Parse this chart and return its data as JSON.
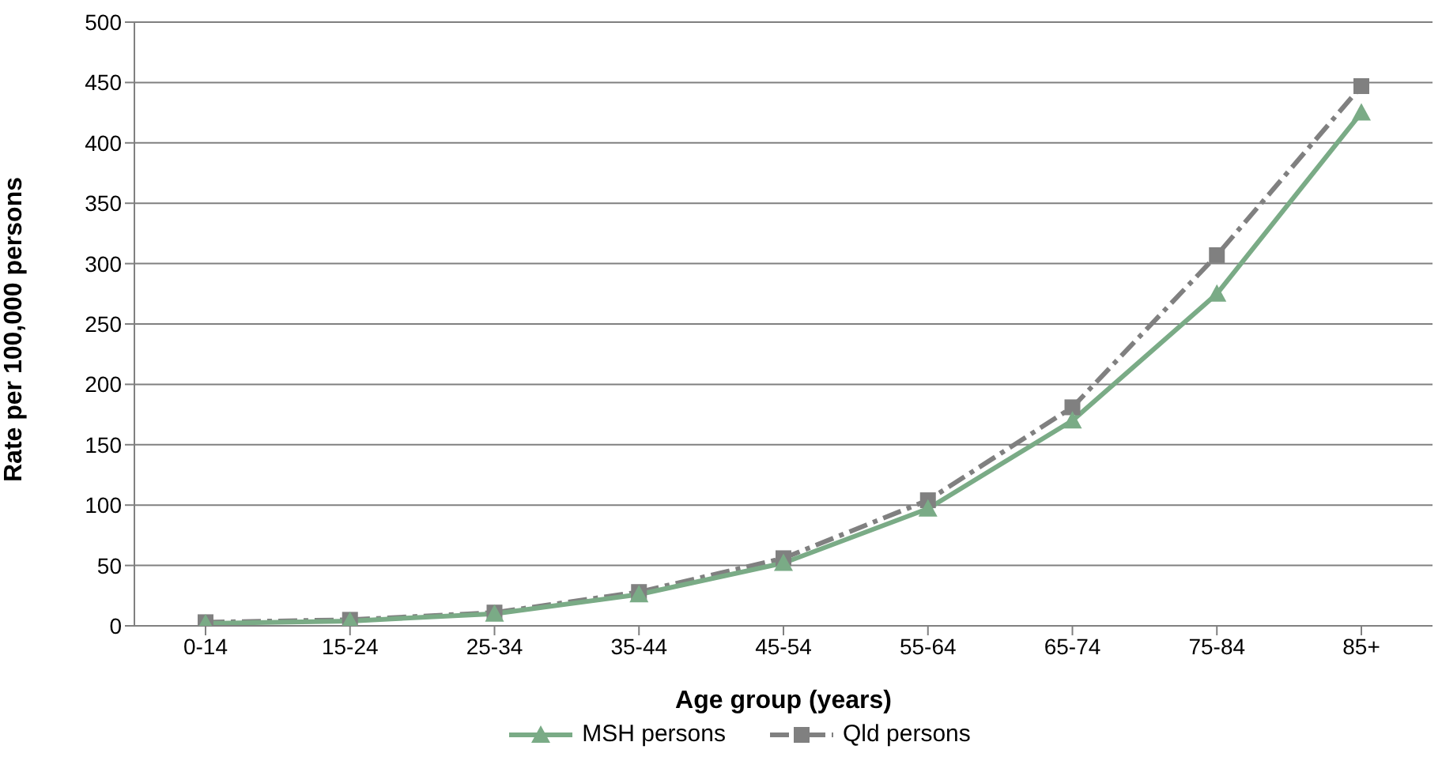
{
  "chart_data": {
    "type": "line",
    "xlabel": "Age group (years)",
    "ylabel": "Rate per 100,000 persons",
    "categories": [
      "0-14",
      "15-24",
      "25-34",
      "35-44",
      "45-54",
      "55-64",
      "65-74",
      "75-84",
      "85+"
    ],
    "series": [
      {
        "name": "MSH persons",
        "color": "#7aab86",
        "marker": "triangle",
        "line_style": "solid",
        "values": [
          2,
          4,
          10,
          26,
          52,
          97,
          170,
          275,
          425
        ]
      },
      {
        "name": "Qld persons",
        "color": "#808080",
        "marker": "square",
        "line_style": "dashed",
        "values": [
          3,
          5,
          11,
          28,
          56,
          104,
          181,
          307,
          447
        ]
      }
    ],
    "ylim": [
      0,
      500
    ],
    "yticks": [
      0,
      50,
      100,
      150,
      200,
      250,
      300,
      350,
      400,
      450,
      500
    ],
    "grid": "y",
    "legend": "bottom"
  }
}
